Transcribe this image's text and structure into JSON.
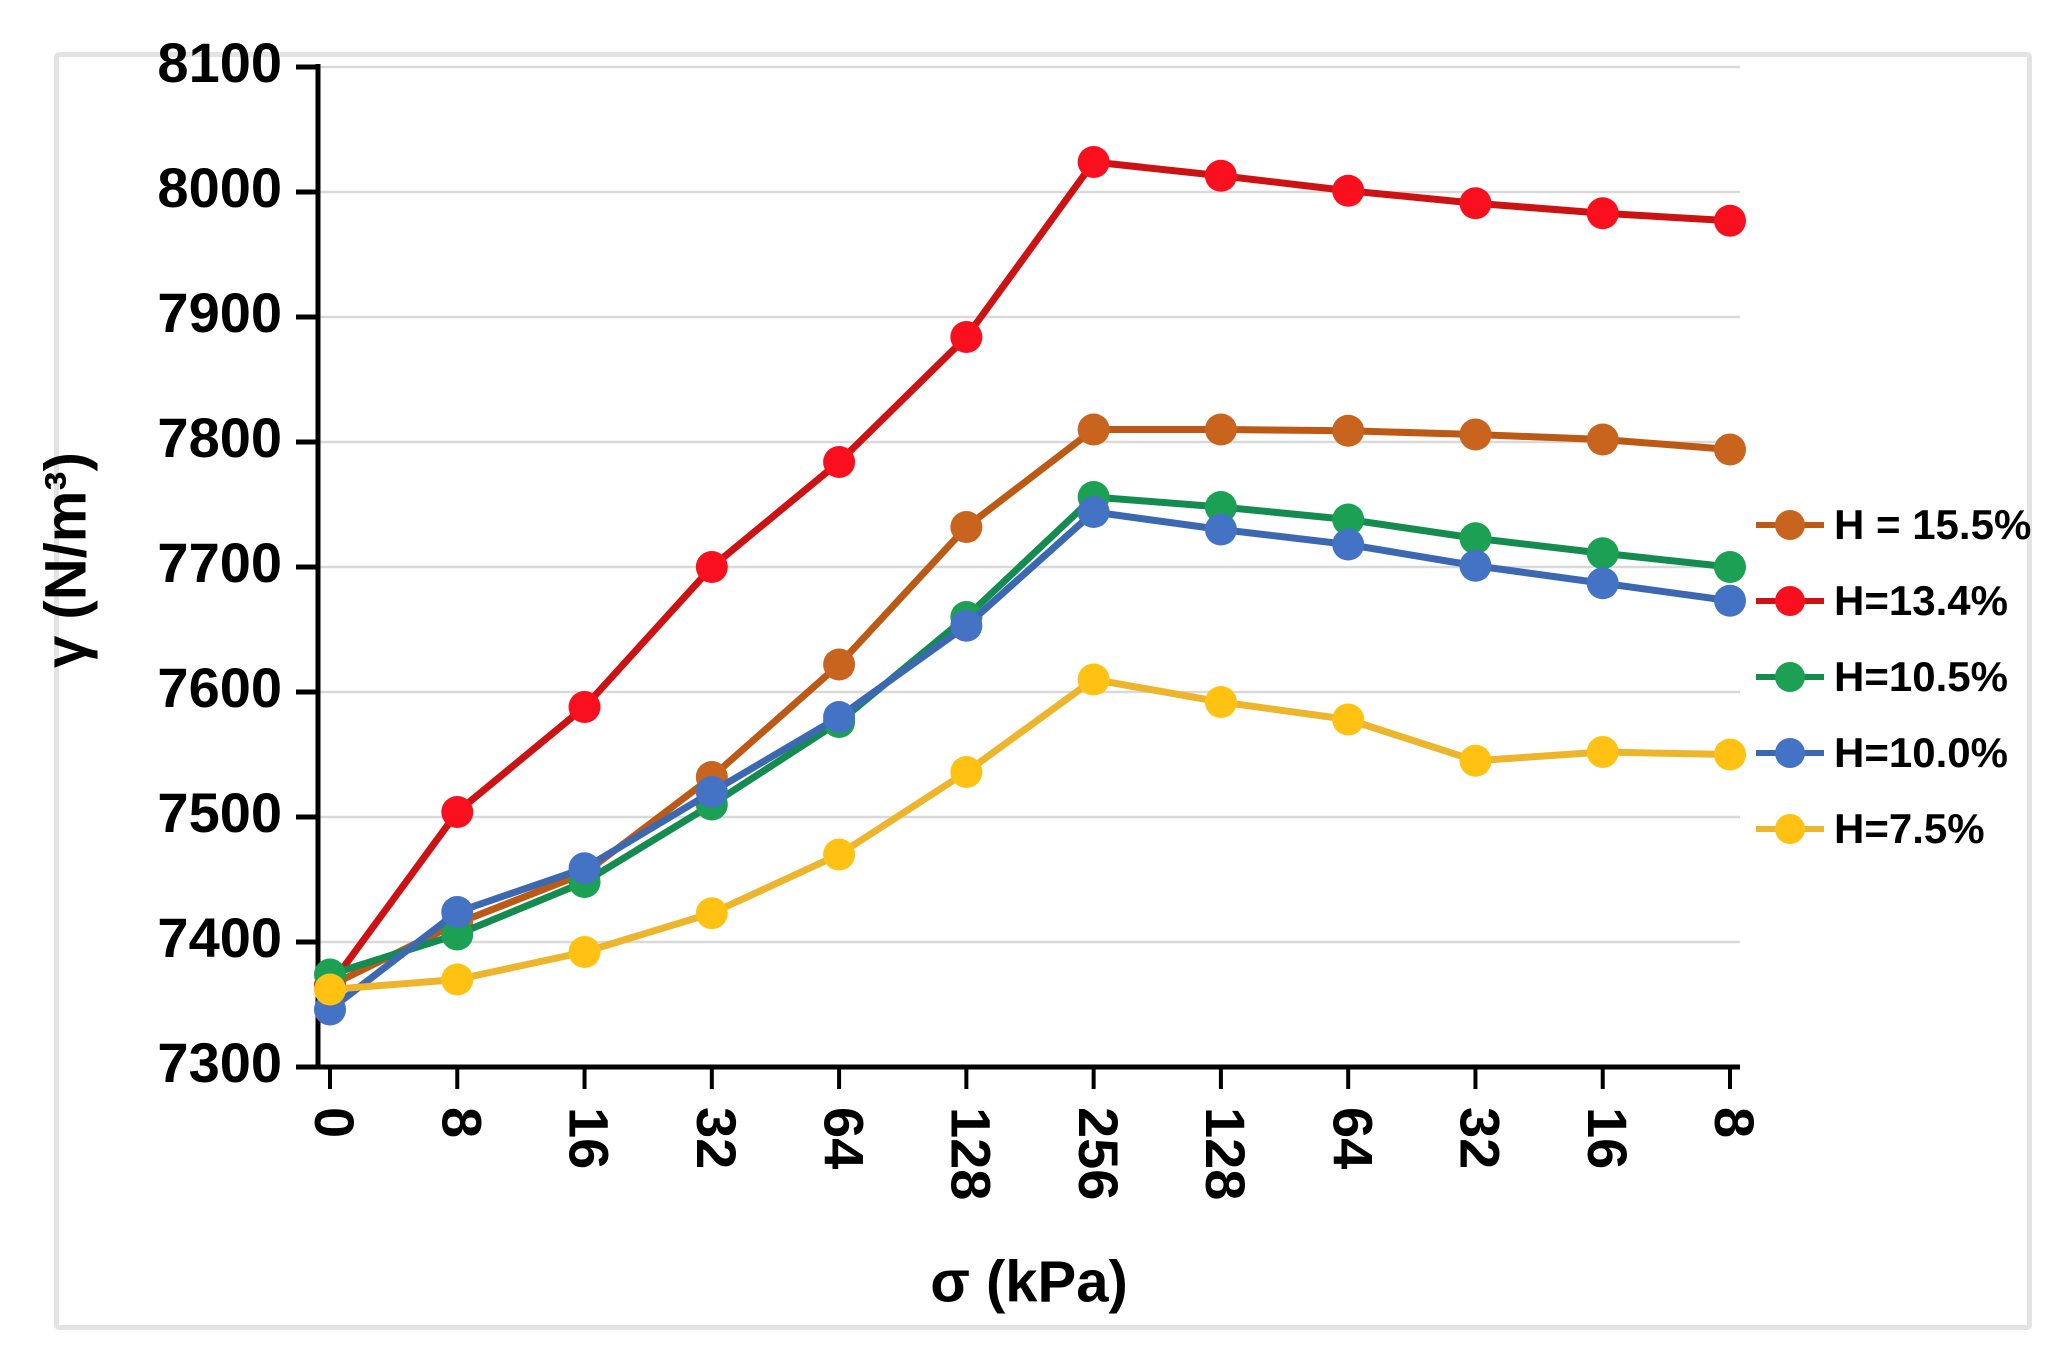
{
  "figure": {
    "background_color": "#FFFFFF",
    "frame_border_color": "#E3E3E3",
    "grid_color": "#D9D9D9",
    "axis_line_color": "#000000",
    "tick_label_color": "#000000"
  },
  "chart_data": {
    "type": "line",
    "title": "",
    "xlabel": "σ (kPa)",
    "ylabel": "γ (N/m³)",
    "categories": [
      "0",
      "8",
      "16",
      "32",
      "64",
      "128",
      "256",
      "128",
      "64",
      "32",
      "16",
      "8"
    ],
    "ylim": [
      7300,
      8100
    ],
    "ytick_step": 100,
    "ytick_labels": [
      "7300",
      "7400",
      "7500",
      "7600",
      "7700",
      "7800",
      "7900",
      "8000",
      "8100"
    ],
    "grid": "horizontal",
    "legend_position": "right",
    "series": [
      {
        "name": "H = 15.5%",
        "marker_color": "#C8641E",
        "line_color": "#BC5A15",
        "values": [
          7365,
          7415,
          7455,
          7532,
          7622,
          7732,
          7810,
          7810,
          7809,
          7806,
          7802,
          7794
        ]
      },
      {
        "name": "H=13.4%",
        "marker_color": "#FA0F1E",
        "line_color": "#CC1212",
        "values": [
          7365,
          7504,
          7588,
          7700,
          7784,
          7884,
          8024,
          8013,
          8001,
          7991,
          7983,
          7977
        ]
      },
      {
        "name": "H=10.5%",
        "marker_color": "#1CA053",
        "line_color": "#148C50",
        "values": [
          7374,
          7406,
          7448,
          7510,
          7576,
          7660,
          7756,
          7748,
          7738,
          7723,
          7711,
          7700
        ]
      },
      {
        "name": "H=10.0%",
        "marker_color": "#4472C4",
        "line_color": "#3C68B2",
        "values": [
          7346,
          7424,
          7459,
          7520,
          7580,
          7653,
          7744,
          7730,
          7718,
          7701,
          7687,
          7673
        ]
      },
      {
        "name": "H=7.5%",
        "marker_color": "#FFC213",
        "line_color": "#EDB52C",
        "values": [
          7362,
          7370,
          7392,
          7423,
          7470,
          7536,
          7610,
          7592,
          7578,
          7545,
          7552,
          7550
        ]
      }
    ]
  }
}
